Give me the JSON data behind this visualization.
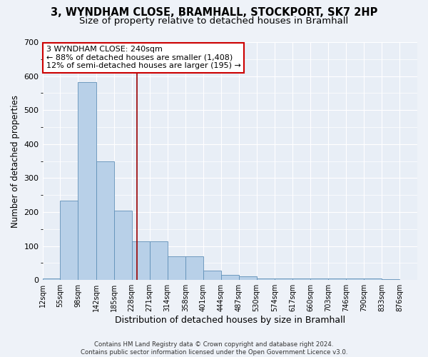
{
  "title1": "3, WYNDHAM CLOSE, BRAMHALL, STOCKPORT, SK7 2HP",
  "title2": "Size of property relative to detached houses in Bramhall",
  "xlabel": "Distribution of detached houses by size in Bramhall",
  "ylabel": "Number of detached properties",
  "footer1": "Contains HM Land Registry data © Crown copyright and database right 2024.",
  "footer2": "Contains public sector information licensed under the Open Government Licence v3.0.",
  "bins": [
    12,
    55,
    98,
    142,
    185,
    228,
    271,
    314,
    358,
    401,
    444,
    487,
    530,
    574,
    617,
    660,
    703,
    746,
    790,
    833,
    876
  ],
  "bar_heights": [
    5,
    233,
    583,
    350,
    205,
    113,
    113,
    70,
    70,
    27,
    15,
    10,
    5,
    5,
    5,
    5,
    5,
    5,
    5,
    3
  ],
  "bar_color": "#b8d0e8",
  "bar_edge_color": "#6090b8",
  "property_size": 240,
  "annotation_title": "3 WYNDHAM CLOSE: 240sqm",
  "annotation_line1": "← 88% of detached houses are smaller (1,408)",
  "annotation_line2": "12% of semi-detached houses are larger (195) →",
  "annotation_box_color": "#ffffff",
  "annotation_box_edge": "#cc0000",
  "vline_color": "#990000",
  "ylim": [
    0,
    700
  ],
  "yticks": [
    0,
    100,
    200,
    300,
    400,
    500,
    600,
    700
  ],
  "background_color": "#eef2f8",
  "plot_bg_color": "#e8eef6",
  "grid_color": "#ffffff",
  "title_fontsize": 10.5,
  "subtitle_fontsize": 9.5
}
